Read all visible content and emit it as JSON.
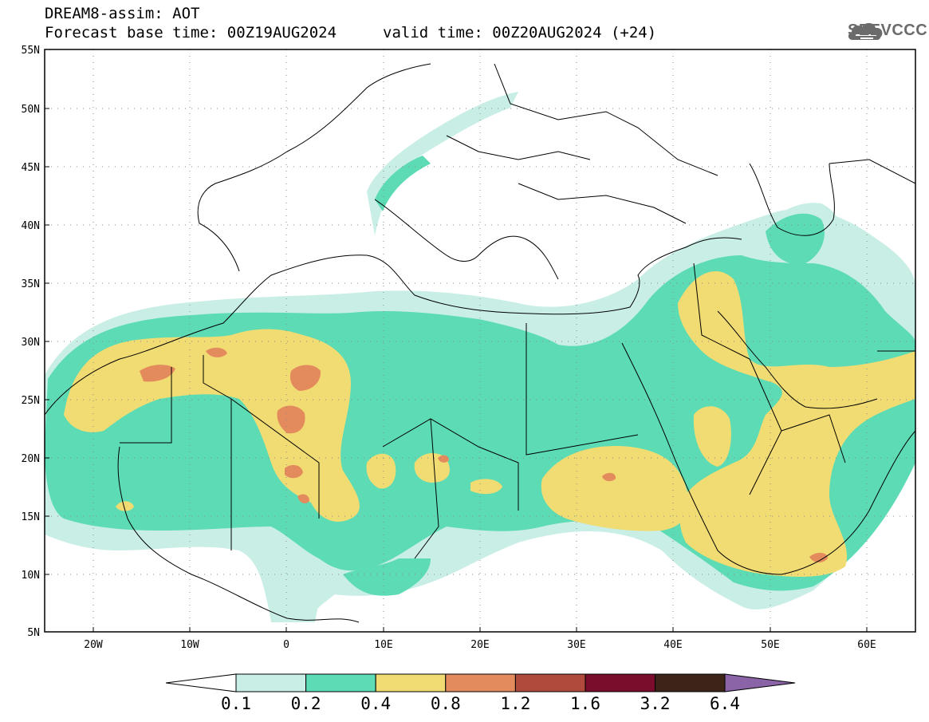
{
  "header": {
    "title": "DREAM8-assim: AOT",
    "base_time": "Forecast base time: 00Z19AUG2024",
    "valid_time": "valid time: 00Z20AUG2024 (+24)"
  },
  "logo": {
    "text": "SEEVCCC",
    "icon": "cloud-icon"
  },
  "map": {
    "lon_range": [
      -25,
      65
    ],
    "lat_range": [
      5,
      55
    ],
    "lat_labels": [
      "55N",
      "50N",
      "45N",
      "40N",
      "35N",
      "30N",
      "25N",
      "20N",
      "15N",
      "10N",
      "5N"
    ],
    "lon_labels": [
      "20W",
      "10W",
      "0",
      "10E",
      "20E",
      "30E",
      "40E",
      "50E",
      "60E"
    ]
  },
  "colorbar": {
    "bins": [
      {
        "color": "#c8eee6"
      },
      {
        "color": "#5cdbb4"
      },
      {
        "color": "#f1dc73"
      },
      {
        "color": "#e48b5e"
      },
      {
        "color": "#b04a3c"
      },
      {
        "color": "#7a0c2c"
      },
      {
        "color": "#3c2418"
      }
    ],
    "over_color": "#8a64a6",
    "under_color": "#ffffff",
    "labels": [
      "0.1",
      "0.2",
      "0.4",
      "0.8",
      "1.2",
      "1.6",
      "3.2",
      "6.4"
    ]
  }
}
